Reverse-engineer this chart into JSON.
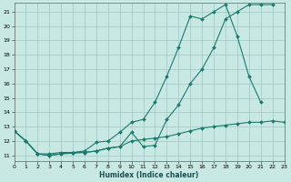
{
  "xlabel": "Humidex (Indice chaleur)",
  "bg_color": "#c8e8e4",
  "grid_color": "#a0c8c4",
  "line_color": "#1a7a6e",
  "x_values": [
    0,
    1,
    2,
    3,
    4,
    5,
    6,
    7,
    8,
    9,
    10,
    11,
    12,
    13,
    14,
    15,
    16,
    17,
    18,
    19,
    20,
    21,
    22,
    23
  ],
  "line1": [
    12.7,
    12.0,
    11.1,
    11.0,
    11.1,
    11.15,
    11.2,
    11.3,
    11.5,
    11.6,
    12.6,
    11.6,
    11.7,
    13.5,
    14.5,
    16.0,
    17.0,
    18.5,
    20.5,
    21.0,
    21.5,
    21.5,
    21.5,
    null
  ],
  "line2": [
    12.7,
    12.0,
    11.1,
    11.1,
    11.2,
    11.2,
    11.3,
    11.9,
    12.0,
    12.6,
    13.3,
    13.5,
    14.7,
    16.5,
    18.5,
    20.7,
    20.5,
    21.0,
    21.5,
    19.3,
    16.5,
    14.7,
    null,
    null
  ],
  "line3": [
    12.7,
    12.0,
    11.1,
    11.0,
    11.1,
    11.2,
    11.2,
    11.3,
    11.5,
    11.6,
    12.0,
    12.1,
    12.2,
    12.3,
    12.5,
    12.7,
    12.9,
    13.0,
    13.1,
    13.2,
    13.3,
    13.3,
    13.4,
    13.3
  ],
  "xlim": [
    0,
    23
  ],
  "ylim": [
    10.6,
    21.6
  ],
  "yticks": [
    11,
    12,
    13,
    14,
    15,
    16,
    17,
    18,
    19,
    20,
    21
  ],
  "xticks": [
    0,
    1,
    2,
    3,
    4,
    5,
    6,
    7,
    8,
    9,
    10,
    11,
    12,
    13,
    14,
    15,
    16,
    17,
    18,
    19,
    20,
    21,
    22,
    23
  ],
  "xlabel_fontsize": 5.5,
  "tick_fontsize": 4.5
}
